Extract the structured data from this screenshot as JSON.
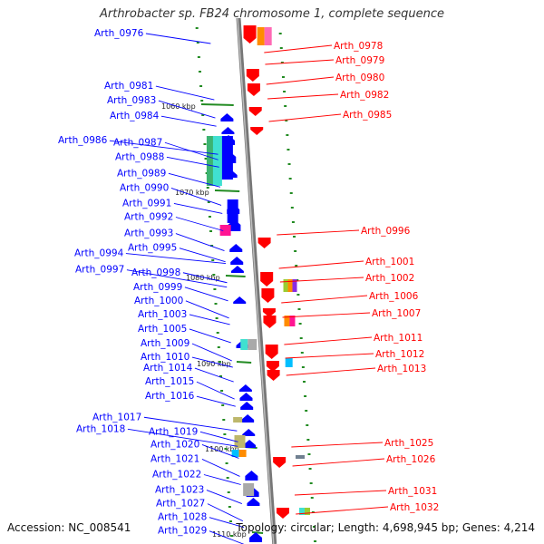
{
  "title": "Arthrobacter sp. FB24 chromosome 1, complete sequence",
  "footer": {
    "accession": "Accession: NC_008541",
    "topology": "Topology: circular; Length: 4,698,945 bp; Genes: 4,214"
  },
  "colors": {
    "forward": "#0000ff",
    "reverse": "#ff0000",
    "backbone": "#999999",
    "dot": "#228b22"
  },
  "scale_marks": [
    "1060 kbp",
    "1070 kbp",
    "1080 kbp",
    "1090 kbp",
    "1100 kbp",
    "1110 kbp"
  ],
  "left_labels": [
    "Arth_0976",
    "Arth_0981",
    "Arth_0983",
    "Arth_0984",
    "Arth_0986",
    "Arth_0987",
    "Arth_0988",
    "Arth_0989",
    "Arth_0990",
    "Arth_0991",
    "Arth_0992",
    "Arth_0993",
    "Arth_0994",
    "Arth_0995",
    "Arth_0997",
    "Arth_0998",
    "Arth_0999",
    "Arth_1000",
    "Arth_1003",
    "Arth_1005",
    "Arth_1009",
    "Arth_1010",
    "Arth_1014",
    "Arth_1015",
    "Arth_1016",
    "Arth_1017",
    "Arth_1018",
    "Arth_1019",
    "Arth_1020",
    "Arth_1021",
    "Arth_1022",
    "Arth_1023",
    "Arth_1027",
    "Arth_1028",
    "Arth_1029"
  ],
  "right_labels": [
    "Arth_0978",
    "Arth_0979",
    "Arth_0980",
    "Arth_0982",
    "Arth_0985",
    "Arth_0996",
    "Arth_1001",
    "Arth_1002",
    "Arth_1006",
    "Arth_1007",
    "Arth_1011",
    "Arth_1012",
    "Arth_1013",
    "Arth_1025",
    "Arth_1026",
    "Arth_1031",
    "Arth_1032"
  ]
}
